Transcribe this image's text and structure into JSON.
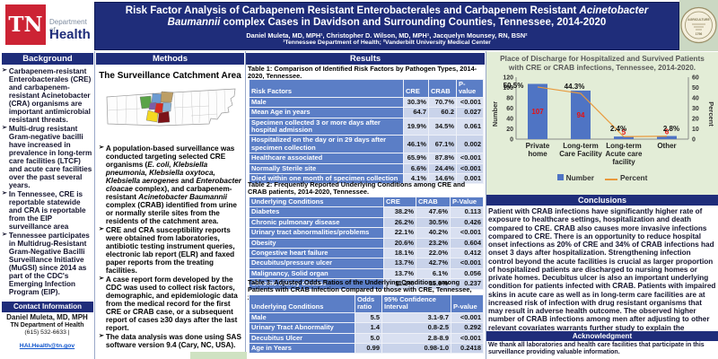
{
  "header": {
    "logo": {
      "tn": "TN",
      "dept": "Department of",
      "health": "Health"
    },
    "title": {
      "part1": "Risk Factor Analysis of Carbapenem Resistant Enterobacterales and Carbapenem Resistant ",
      "italic": "Acinetobacter Baumannii",
      "part3": " complex Cases in Davidson and Surrounding Counties, Tennessee, 2014-2020"
    },
    "authors": "Daniel Muleta, MD, MPH¹, Christopher D. Wilson, MD, MPH¹, Jacquelyn Mounsey, RN, BSN²",
    "affiliations": "¹Tennessee Department of Health; ²Vanderbilt University Medical Center",
    "seal": {
      "line1": "AGRICULTURE",
      "line2": "1796"
    }
  },
  "background": {
    "header": "Background",
    "bullets": [
      "Carbapenem-resistant Enterobacterales (CRE) and carbapenem-resistant Acinetobacter (CRA) organisms are important antimicrobial resistant threats.",
      "Multi-drug resistant Gram-negative bacilli have increased in prevalence in long-term care facilities (LTCF) and acute care facilities over the past several years.",
      "In Tennessee, CRE is reportable statewide and CRA is reportable from the EIP surveillance area",
      "Tennessee participates in Multidrug-Resistant Gram-Negative Bacilli Surveillance Initiative (MuGSI) since 2014 as part of the CDC's Emerging Infection Program (EIP)."
    ]
  },
  "contact": {
    "header": "Contact Information",
    "name": "Daniel Muleta, MD, MPH",
    "org": "TN Department of Health",
    "phone": "(615) 532-6633 |",
    "email": "HAI.Health@tn.gov"
  },
  "methods": {
    "header": "Methods",
    "map_title": "The Surveillance Catchment Area",
    "bullets": [
      {
        "parts": [
          {
            "t": "A population-based surveillance was conducted targeting selected CRE organisms (",
            "i": false
          },
          {
            "t": "E. coli, Klebsiella pneumonia, Klebsiella oxytoca, Klebsiella aerogenes",
            "i": true
          },
          {
            "t": " and ",
            "i": false
          },
          {
            "t": "Enterobacter cloacae",
            "i": true
          },
          {
            "t": " complex), and carbapenem-resistant ",
            "i": false
          },
          {
            "t": "Acinetobacter Baumannii",
            "i": true
          },
          {
            "t": " complex (CRAB) identified from urine or normally sterile sites from the residents of the catchment area.",
            "i": false
          }
        ]
      },
      "CRE and CRA susceptibility reports were obtained from laboratories, antibiotic testing instrument queries, electronic lab report (ELR) and faxed paper reports from the treating facilities.",
      "A case report form developed by the CDC was used to collect risk factors, demographic, and epidemiologic data from the medical record for the first CRE or CRAB case, or a subsequent report of cases ≥30 days after the last report.",
      "The data analysis was done using SAS software version 9.4 (Cary, NC, USA)."
    ]
  },
  "results": {
    "header": "Results",
    "table1": {
      "title": "Table 1: Comparison of Identified Risk Factors by Pathogen Types, 2014-2020, Tennessee.",
      "columns": [
        "Risk Factors",
        "CRE",
        "CRAB",
        "P-value"
      ],
      "rows": [
        [
          "Male",
          "30.3%",
          "70.7%",
          "<0.001"
        ],
        [
          "Mean Age in years",
          "64.7",
          "60.2",
          "0.027"
        ],
        [
          "Specimen collected 3 or more days after hospital admission",
          "19.9%",
          "34.5%",
          "0.061"
        ],
        [
          "Hospitalized on the day or in 29 days after specimen collection",
          "46.1%",
          "67.1%",
          "0.002"
        ],
        [
          "Healthcare associated",
          "65.9%",
          "87.8%",
          "<0.001"
        ],
        [
          "Normally Sterile site",
          "6.6%",
          "24.4%",
          "<0.001"
        ],
        [
          "Died within one month of specimen collection",
          "4.1%",
          "14.6%",
          "0.001"
        ]
      ]
    },
    "table2": {
      "title": "Table 2: Frequently Reported Underlying Conditions among CRE and CRAB patients, 2014-2020, Tennessee.",
      "columns": [
        "Underlying Conditions",
        "CRE",
        "CRAB",
        "P-Value"
      ],
      "rows": [
        [
          "Diabetes",
          "38.2%",
          "47.6%",
          "0.113"
        ],
        [
          "Chronic pulmonary disease",
          "26.2%",
          "30.5%",
          "0.426"
        ],
        [
          "Urinary tract abnormalities/problems",
          "22.1%",
          "40.2%",
          "<0.001"
        ],
        [
          "Obesity",
          "20.6%",
          "23.2%",
          "0.604"
        ],
        [
          "Congestive heart failure",
          "18.1%",
          "22.0%",
          "0.412"
        ],
        [
          "Decubitus/pressure ulcer",
          "13.7%",
          "42.7%",
          "<0.001"
        ],
        [
          "Malignancy, Solid organ",
          "13.7%",
          "6.1%",
          "0.056"
        ],
        [
          "Chronic kidney disease",
          "11.2%",
          "15.9%",
          "0.237"
        ]
      ]
    },
    "table3": {
      "title": "Table 3: Adjusted Odds Ratios of the Underlying Conditions among Patients with CRAB Infection Compared to those with CRE, Tennessee, 2014-2020.",
      "columns": [
        "Underlying Conditions",
        "Odds ratio",
        "95% Confidence Interval",
        "P-value"
      ],
      "rows": [
        [
          "Male",
          "5.5",
          "3.1-9.7",
          "<0.001"
        ],
        [
          "Urinary Tract Abnormality",
          "1.4",
          "0.8-2.5",
          "0.292"
        ],
        [
          "Decubitus Ulcer",
          "5.0",
          "2.8-8.9",
          "<0.001"
        ],
        [
          "Age in Years",
          "0.99",
          "0.98-1.0",
          "0.2418"
        ]
      ]
    }
  },
  "conclusions": {
    "header": "Conclusions",
    "text": "Patient with CRAB infections have significantly higher rate of exposure to healthcare settings, hospitalization and death compared to CRE. CRAB also causes more invasive infections compared to CRE. There is an opportunity to reduce hospital onset infections as 20% of CRE and 34% of CRAB infections had onset 3 days after hospitalization.  Strengthening infection control beyond the acute facilities is crucial as larger proportion of hospitalized patients are discharged to nursing homes or private homes. Decubitus ulcer is also an important underlying condition for patients infected with CRAB. Patients with impaired skins in acute care as well as in long-term care facilities are at increased risk of infection with drug resistant organisms that may result in adverse health outcome. The observed higher number of CRAB infections among men after adjusting to other relevant covariates warrants further study to explain the findings."
  },
  "acknowledgment": {
    "header": "Acknowledgment",
    "text": "We thank all laboratories and health care facilities that participate in this surveillance providing valuable information."
  },
  "chart_data": {
    "type": "bar",
    "title": "Place of Discharge for Hospitalized and Survived Patients with CRE or CRAB infections, Tennessee, 2014-2020.",
    "categories": [
      "Private home",
      "Long-term Care Facility",
      "Long-term Acute care facility",
      "Other"
    ],
    "category_lines": [
      [
        "Private",
        "home"
      ],
      [
        "Long-term",
        "Care Facility"
      ],
      [
        "Long-term",
        "Acute care",
        "facility"
      ],
      [
        "Other"
      ]
    ],
    "series": [
      {
        "name": "Number",
        "type": "bar",
        "axis": "left",
        "values": [
          107,
          94,
          5,
          6
        ],
        "labels": [
          "107",
          "94",
          "5",
          "6"
        ]
      },
      {
        "name": "Percent",
        "type": "line",
        "axis": "right",
        "values": [
          50.5,
          44.3,
          2.4,
          2.8
        ],
        "labels": [
          "50.5%",
          "44.3%",
          "2.4%",
          "2.8%"
        ]
      }
    ],
    "ylabel_left": "Number",
    "ylabel_right": "Percent",
    "ylim_left": [
      0,
      120
    ],
    "ylim_right": [
      0,
      60
    ],
    "left_ticks": [
      0,
      20,
      40,
      60,
      80,
      100,
      120
    ],
    "right_ticks": [
      0,
      10,
      20,
      30,
      40,
      50,
      60
    ],
    "legend": [
      "Number",
      "Percent"
    ],
    "legend_position": "bottom",
    "grid": false
  },
  "colors": {
    "navy": "#1f2d7a",
    "tn_red": "#cc2334",
    "table_header_blue": "#5b7ec6",
    "cell_light": "#d9e0f1",
    "cell_alt": "#c9d3ea",
    "bar_blue": "#4f74c4",
    "line_orange": "#e8993c",
    "bar_label_red": "#e81010",
    "chart_bg": "#e3edd7",
    "email_blue": "#1155cc"
  }
}
